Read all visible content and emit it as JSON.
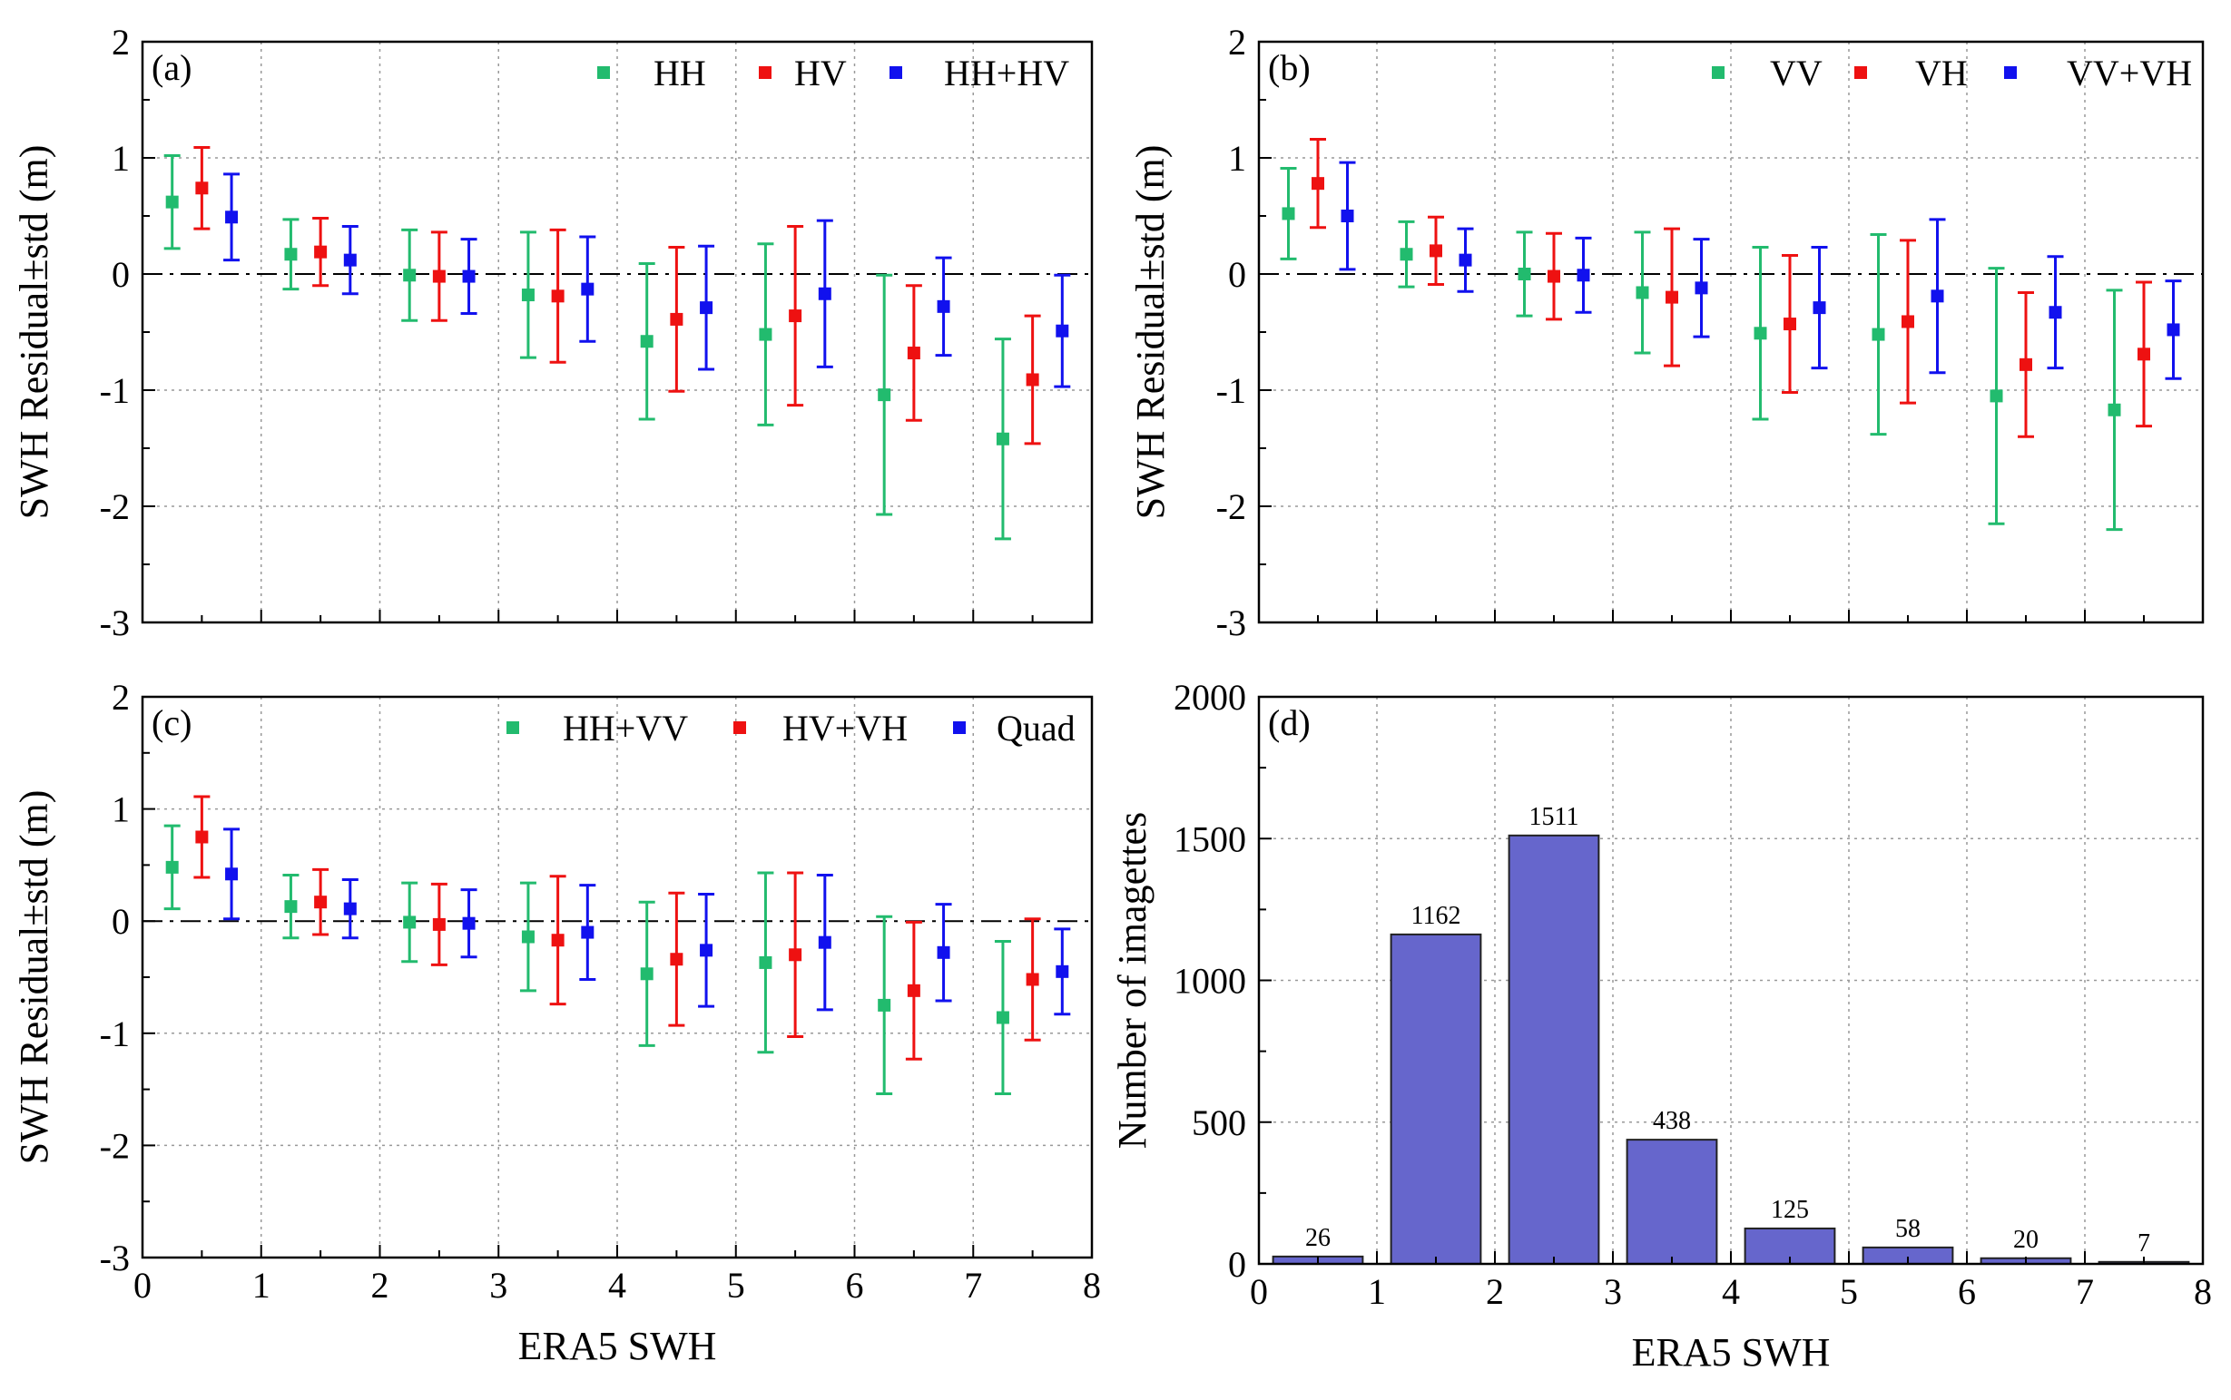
{
  "colors": {
    "green": "#22bb6e",
    "red": "#ee1111",
    "blue": "#1111ee",
    "bar": "#6666cc",
    "grid": "#999999"
  },
  "chart_data": [
    {
      "panel": "(a)",
      "type": "errorbar",
      "xlabel": "",
      "ylabel": "SWH Residual±std (m)",
      "xlim": [
        0,
        8
      ],
      "ylim": [
        -3,
        2
      ],
      "xticks": [
        "0",
        "1",
        "2",
        "3",
        "4",
        "5",
        "6",
        "7",
        "8"
      ],
      "yticks": [
        "-3",
        "-2",
        "-1",
        "0",
        "1",
        "2"
      ],
      "show_xtick_labels": false,
      "grid": true,
      "zero_line": true,
      "legend_position": "top-right",
      "series": [
        {
          "name": "HH",
          "color": "#22bb6e",
          "x": [
            0.25,
            1.25,
            2.25,
            3.25,
            4.25,
            5.25,
            6.25,
            7.25
          ],
          "y": [
            0.62,
            0.17,
            -0.01,
            -0.18,
            -0.58,
            -0.52,
            -1.04,
            -1.42
          ],
          "std": [
            0.4,
            0.3,
            0.39,
            0.54,
            0.67,
            0.78,
            1.03,
            0.86
          ]
        },
        {
          "name": "HV",
          "color": "#ee1111",
          "x": [
            0.5,
            1.5,
            2.5,
            3.5,
            4.5,
            5.5,
            6.5,
            7.5
          ],
          "y": [
            0.74,
            0.19,
            -0.02,
            -0.19,
            -0.39,
            -0.36,
            -0.68,
            -0.91
          ],
          "std": [
            0.35,
            0.29,
            0.38,
            0.57,
            0.62,
            0.77,
            0.58,
            0.55
          ]
        },
        {
          "name": "HH+HV",
          "color": "#1111ee",
          "x": [
            0.75,
            1.75,
            2.75,
            3.75,
            4.75,
            5.75,
            6.75,
            7.75
          ],
          "y": [
            0.49,
            0.12,
            -0.02,
            -0.13,
            -0.29,
            -0.17,
            -0.28,
            -0.49
          ],
          "std": [
            0.37,
            0.29,
            0.32,
            0.45,
            0.53,
            0.63,
            0.42,
            0.48
          ]
        }
      ]
    },
    {
      "panel": "(b)",
      "type": "errorbar",
      "xlabel": "",
      "ylabel": "SWH Residual±std (m)",
      "xlim": [
        0,
        8
      ],
      "ylim": [
        -3,
        2
      ],
      "xticks": [
        "0",
        "1",
        "2",
        "3",
        "4",
        "5",
        "6",
        "7",
        "8"
      ],
      "yticks": [
        "-3",
        "-2",
        "-1",
        "0",
        "1",
        "2"
      ],
      "show_xtick_labels": false,
      "grid": true,
      "zero_line": true,
      "legend_position": "top-right",
      "series": [
        {
          "name": "VV",
          "color": "#22bb6e",
          "x": [
            0.25,
            1.25,
            2.25,
            3.25,
            4.25,
            5.25,
            6.25,
            7.25
          ],
          "y": [
            0.52,
            0.17,
            0.0,
            -0.16,
            -0.51,
            -0.52,
            -1.05,
            -1.17
          ],
          "std": [
            0.39,
            0.28,
            0.36,
            0.52,
            0.74,
            0.86,
            1.1,
            1.03
          ]
        },
        {
          "name": "VH",
          "color": "#ee1111",
          "x": [
            0.5,
            1.5,
            2.5,
            3.5,
            4.5,
            5.5,
            6.5,
            7.5
          ],
          "y": [
            0.78,
            0.2,
            -0.02,
            -0.2,
            -0.43,
            -0.41,
            -0.78,
            -0.69
          ],
          "std": [
            0.38,
            0.29,
            0.37,
            0.59,
            0.59,
            0.7,
            0.62,
            0.62
          ]
        },
        {
          "name": "VV+VH",
          "color": "#1111ee",
          "x": [
            0.75,
            1.75,
            2.75,
            3.75,
            4.75,
            5.75,
            6.75,
            7.75
          ],
          "y": [
            0.5,
            0.12,
            -0.01,
            -0.12,
            -0.29,
            -0.19,
            -0.33,
            -0.48
          ],
          "std": [
            0.46,
            0.27,
            0.32,
            0.42,
            0.52,
            0.66,
            0.48,
            0.42
          ]
        }
      ]
    },
    {
      "panel": "(c)",
      "type": "errorbar",
      "xlabel": "ERA5 SWH",
      "ylabel": "SWH Residual±std (m)",
      "xlim": [
        0,
        8
      ],
      "ylim": [
        -3,
        2
      ],
      "xticks": [
        "0",
        "1",
        "2",
        "3",
        "4",
        "5",
        "6",
        "7",
        "8"
      ],
      "yticks": [
        "-3",
        "-2",
        "-1",
        "0",
        "1",
        "2"
      ],
      "show_xtick_labels": true,
      "grid": true,
      "zero_line": true,
      "legend_position": "top-right",
      "series": [
        {
          "name": "HH+VV",
          "color": "#22bb6e",
          "x": [
            0.25,
            1.25,
            2.25,
            3.25,
            4.25,
            5.25,
            6.25,
            7.25
          ],
          "y": [
            0.48,
            0.13,
            -0.01,
            -0.14,
            -0.47,
            -0.37,
            -0.75,
            -0.86
          ],
          "std": [
            0.37,
            0.28,
            0.35,
            0.48,
            0.64,
            0.8,
            0.79,
            0.68
          ]
        },
        {
          "name": "HV+VH",
          "color": "#ee1111",
          "x": [
            0.5,
            1.5,
            2.5,
            3.5,
            4.5,
            5.5,
            6.5,
            7.5
          ],
          "y": [
            0.75,
            0.17,
            -0.03,
            -0.17,
            -0.34,
            -0.3,
            -0.62,
            -0.52
          ],
          "std": [
            0.36,
            0.29,
            0.36,
            0.57,
            0.59,
            0.73,
            0.61,
            0.54
          ]
        },
        {
          "name": "Quad",
          "color": "#1111ee",
          "x": [
            0.75,
            1.75,
            2.75,
            3.75,
            4.75,
            5.75,
            6.75,
            7.75
          ],
          "y": [
            0.42,
            0.11,
            -0.02,
            -0.1,
            -0.26,
            -0.19,
            -0.28,
            -0.45
          ],
          "std": [
            0.4,
            0.26,
            0.3,
            0.42,
            0.5,
            0.6,
            0.43,
            0.38
          ]
        }
      ]
    },
    {
      "panel": "(d)",
      "type": "bar",
      "xlabel": "ERA5 SWH",
      "ylabel": "Number of imagettes",
      "xlim": [
        0,
        8
      ],
      "ylim": [
        0,
        2000
      ],
      "xticks": [
        "0",
        "1",
        "2",
        "3",
        "4",
        "5",
        "6",
        "7",
        "8"
      ],
      "yticks": [
        "0",
        "500",
        "1000",
        "1500",
        "2000"
      ],
      "show_xtick_labels": true,
      "grid": true,
      "bar_color": "#6666cc",
      "x": [
        0.5,
        1.5,
        2.5,
        3.5,
        4.5,
        5.5,
        6.5,
        7.5
      ],
      "values": [
        26,
        1162,
        1511,
        438,
        125,
        58,
        20,
        7
      ],
      "value_labels": [
        "26",
        "1162",
        "1511",
        "438",
        "125",
        "58",
        "20",
        "7"
      ]
    }
  ]
}
